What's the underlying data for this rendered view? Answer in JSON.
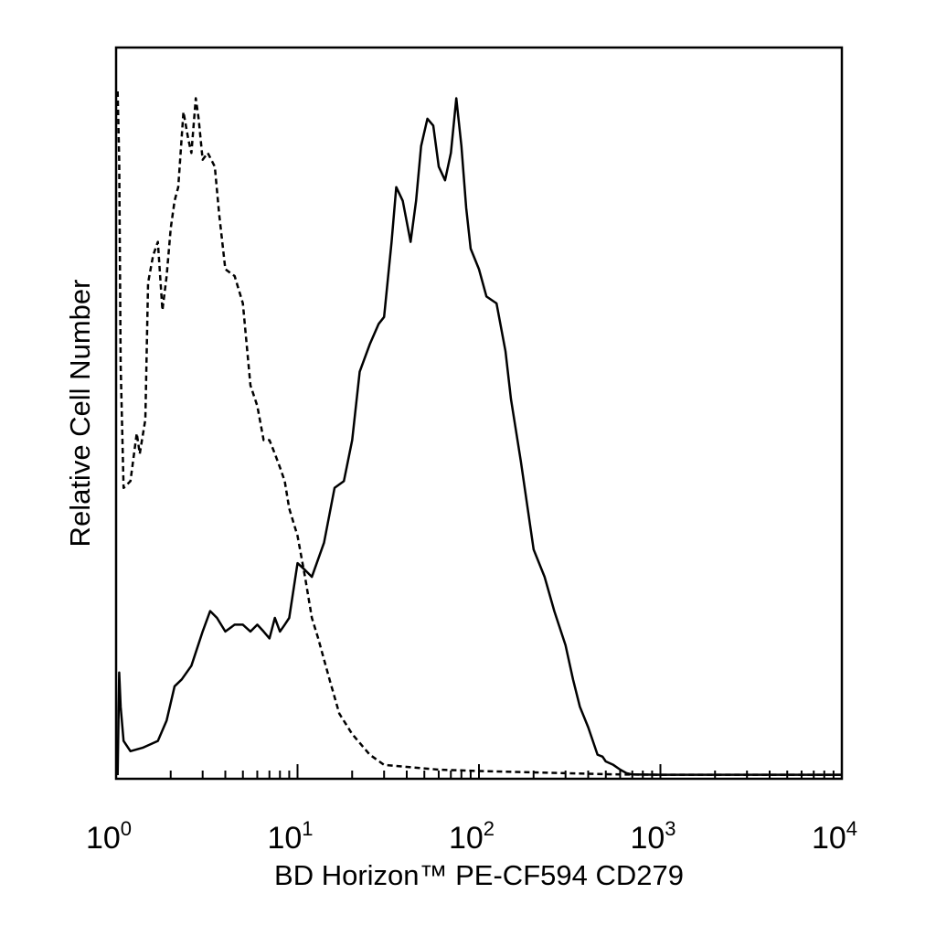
{
  "chart_data": {
    "type": "line",
    "title": "",
    "xlabel": "BD Horizon™ PE-CF594 CD279",
    "ylabel": "Relative Cell Number",
    "x_scale": "log",
    "xlim": [
      1,
      10000
    ],
    "ylim": [
      0,
      100
    ],
    "grid": false,
    "legend": "none",
    "x_ticks": [
      {
        "base": "10",
        "exp": "0",
        "value": 1
      },
      {
        "base": "10",
        "exp": "1",
        "value": 10
      },
      {
        "base": "10",
        "exp": "2",
        "value": 100
      },
      {
        "base": "10",
        "exp": "3",
        "value": 1000
      },
      {
        "base": "10",
        "exp": "4",
        "value": 10000
      }
    ],
    "series": [
      {
        "style": "dashed",
        "color": "#000000",
        "points": [
          [
            1.02,
            100
          ],
          [
            1.04,
            90
          ],
          [
            1.06,
            60
          ],
          [
            1.1,
            42
          ],
          [
            1.2,
            43
          ],
          [
            1.3,
            50
          ],
          [
            1.35,
            47
          ],
          [
            1.45,
            52
          ],
          [
            1.5,
            72
          ],
          [
            1.6,
            76
          ],
          [
            1.7,
            78
          ],
          [
            1.8,
            68
          ],
          [
            1.9,
            73
          ],
          [
            2.0,
            80
          ],
          [
            2.1,
            84
          ],
          [
            2.2,
            86
          ],
          [
            2.35,
            97
          ],
          [
            2.5,
            93
          ],
          [
            2.6,
            91
          ],
          [
            2.75,
            99
          ],
          [
            2.85,
            96
          ],
          [
            3.0,
            90
          ],
          [
            3.2,
            91
          ],
          [
            3.5,
            89
          ],
          [
            3.7,
            82
          ],
          [
            4.0,
            74
          ],
          [
            4.5,
            73
          ],
          [
            5.0,
            69
          ],
          [
            5.5,
            57
          ],
          [
            6.0,
            54
          ],
          [
            6.5,
            49
          ],
          [
            7.0,
            49
          ],
          [
            7.5,
            47
          ],
          [
            8.0,
            45
          ],
          [
            8.5,
            43
          ],
          [
            9.0,
            39
          ],
          [
            10.0,
            35
          ],
          [
            11.0,
            29
          ],
          [
            12.0,
            23
          ],
          [
            13.0,
            20
          ],
          [
            15.0,
            14
          ],
          [
            17.0,
            9
          ],
          [
            20.0,
            6
          ],
          [
            25.0,
            3
          ],
          [
            30.0,
            1.5
          ],
          [
            40.0,
            1.2
          ],
          [
            60.0,
            0.8
          ],
          [
            100.0,
            0.6
          ],
          [
            200.0,
            0.4
          ],
          [
            400.0,
            0.2
          ],
          [
            600.0,
            0.1
          ],
          [
            1000.0,
            0.05
          ],
          [
            10000.0,
            0.05
          ]
        ]
      },
      {
        "style": "solid",
        "color": "#000000",
        "points": [
          [
            1.02,
            0
          ],
          [
            1.04,
            15
          ],
          [
            1.06,
            10
          ],
          [
            1.1,
            5
          ],
          [
            1.2,
            3.5
          ],
          [
            1.4,
            4
          ],
          [
            1.7,
            5
          ],
          [
            1.9,
            8
          ],
          [
            2.1,
            13
          ],
          [
            2.3,
            14
          ],
          [
            2.6,
            16
          ],
          [
            3.0,
            21
          ],
          [
            3.3,
            24
          ],
          [
            3.6,
            23
          ],
          [
            4.0,
            21
          ],
          [
            4.5,
            22
          ],
          [
            5.0,
            22
          ],
          [
            5.5,
            21
          ],
          [
            6.0,
            22
          ],
          [
            6.5,
            21
          ],
          [
            7.0,
            20
          ],
          [
            7.5,
            23
          ],
          [
            8.0,
            21
          ],
          [
            8.5,
            22
          ],
          [
            9.0,
            23
          ],
          [
            10.0,
            31
          ],
          [
            11.0,
            30
          ],
          [
            12.0,
            29
          ],
          [
            14.0,
            34
          ],
          [
            16.0,
            42
          ],
          [
            18.0,
            43
          ],
          [
            20.0,
            49
          ],
          [
            22.0,
            59
          ],
          [
            25.0,
            63
          ],
          [
            28.0,
            66
          ],
          [
            30.0,
            67
          ],
          [
            33.0,
            78
          ],
          [
            35.0,
            86
          ],
          [
            38.0,
            84
          ],
          [
            42.0,
            78
          ],
          [
            45.0,
            84
          ],
          [
            48.0,
            92
          ],
          [
            52.0,
            96
          ],
          [
            56.0,
            95
          ],
          [
            60.0,
            89
          ],
          [
            65.0,
            87
          ],
          [
            70.0,
            91
          ],
          [
            75.0,
            99
          ],
          [
            80.0,
            92
          ],
          [
            85.0,
            83
          ],
          [
            90.0,
            77
          ],
          [
            100.0,
            74
          ],
          [
            110.0,
            70
          ],
          [
            125.0,
            69
          ],
          [
            140.0,
            62
          ],
          [
            150.0,
            55
          ],
          [
            170.0,
            46
          ],
          [
            200.0,
            33
          ],
          [
            230.0,
            29
          ],
          [
            260.0,
            24
          ],
          [
            300.0,
            19
          ],
          [
            330.0,
            14
          ],
          [
            360.0,
            10
          ],
          [
            400.0,
            7
          ],
          [
            450.0,
            3
          ],
          [
            480.0,
            2.7
          ],
          [
            500.0,
            2
          ],
          [
            550.0,
            1.5
          ],
          [
            600.0,
            0.8
          ],
          [
            650.0,
            0.3
          ],
          [
            700.0,
            0.1
          ],
          [
            1000.0,
            0.05
          ],
          [
            10000.0,
            0.05
          ]
        ]
      }
    ]
  }
}
